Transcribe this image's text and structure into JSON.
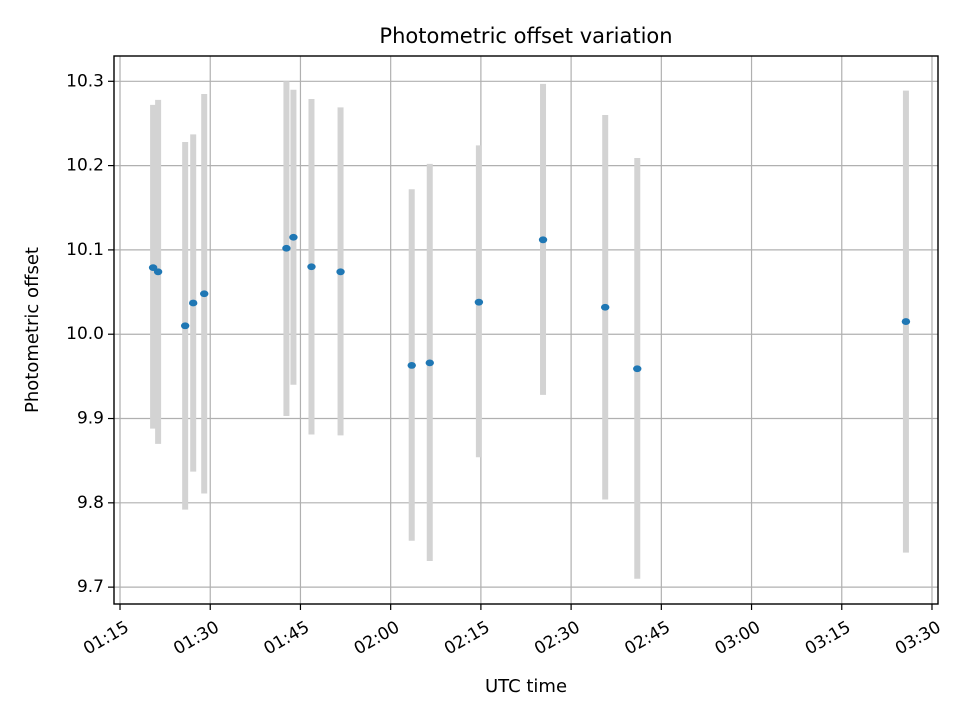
{
  "chart_data": {
    "type": "scatter",
    "title": "Photometric offset variation",
    "xlabel": "UTC time",
    "ylabel": "Photometric offset",
    "x_axis_type": "time",
    "xlim": [
      "01:14",
      "03:31"
    ],
    "ylim": [
      9.68,
      10.33
    ],
    "x_ticks": [
      "01:15",
      "01:30",
      "01:45",
      "02:00",
      "02:15",
      "02:30",
      "02:45",
      "03:00",
      "03:15",
      "03:30"
    ],
    "y_ticks": [
      9.7,
      9.8,
      9.9,
      10.0,
      10.1,
      10.2,
      10.3
    ],
    "y_tick_labels": [
      "9.7",
      "9.8",
      "9.9",
      "10.0",
      "10.1",
      "10.2",
      "10.3"
    ],
    "grid": true,
    "point_color": "#1f77b4",
    "errorbar_color": "#d3d3d3",
    "points": [
      {
        "x": "01:20:30",
        "y": 10.079,
        "low": 9.888,
        "high": 10.272
      },
      {
        "x": "01:21:20",
        "y": 10.074,
        "low": 9.87,
        "high": 10.278
      },
      {
        "x": "01:25:50",
        "y": 10.01,
        "low": 9.792,
        "high": 10.228
      },
      {
        "x": "01:27:10",
        "y": 10.037,
        "low": 9.837,
        "high": 10.237
      },
      {
        "x": "01:29:00",
        "y": 10.048,
        "low": 9.811,
        "high": 10.285
      },
      {
        "x": "01:42:40",
        "y": 10.102,
        "low": 9.903,
        "high": 10.3
      },
      {
        "x": "01:43:50",
        "y": 10.115,
        "low": 9.94,
        "high": 10.29
      },
      {
        "x": "01:46:50",
        "y": 10.08,
        "low": 9.881,
        "high": 10.279
      },
      {
        "x": "01:51:40",
        "y": 10.074,
        "low": 9.88,
        "high": 10.269
      },
      {
        "x": "02:03:30",
        "y": 9.963,
        "low": 9.755,
        "high": 10.172
      },
      {
        "x": "02:06:30",
        "y": 9.966,
        "low": 9.731,
        "high": 10.202
      },
      {
        "x": "02:14:40",
        "y": 10.038,
        "low": 9.854,
        "high": 10.224
      },
      {
        "x": "02:25:20",
        "y": 10.112,
        "low": 9.928,
        "high": 10.297
      },
      {
        "x": "02:35:40",
        "y": 10.032,
        "low": 9.804,
        "high": 10.26
      },
      {
        "x": "02:41:00",
        "y": 9.959,
        "low": 9.71,
        "high": 10.209
      },
      {
        "x": "03:25:40",
        "y": 10.015,
        "low": 9.741,
        "high": 10.289
      }
    ]
  }
}
